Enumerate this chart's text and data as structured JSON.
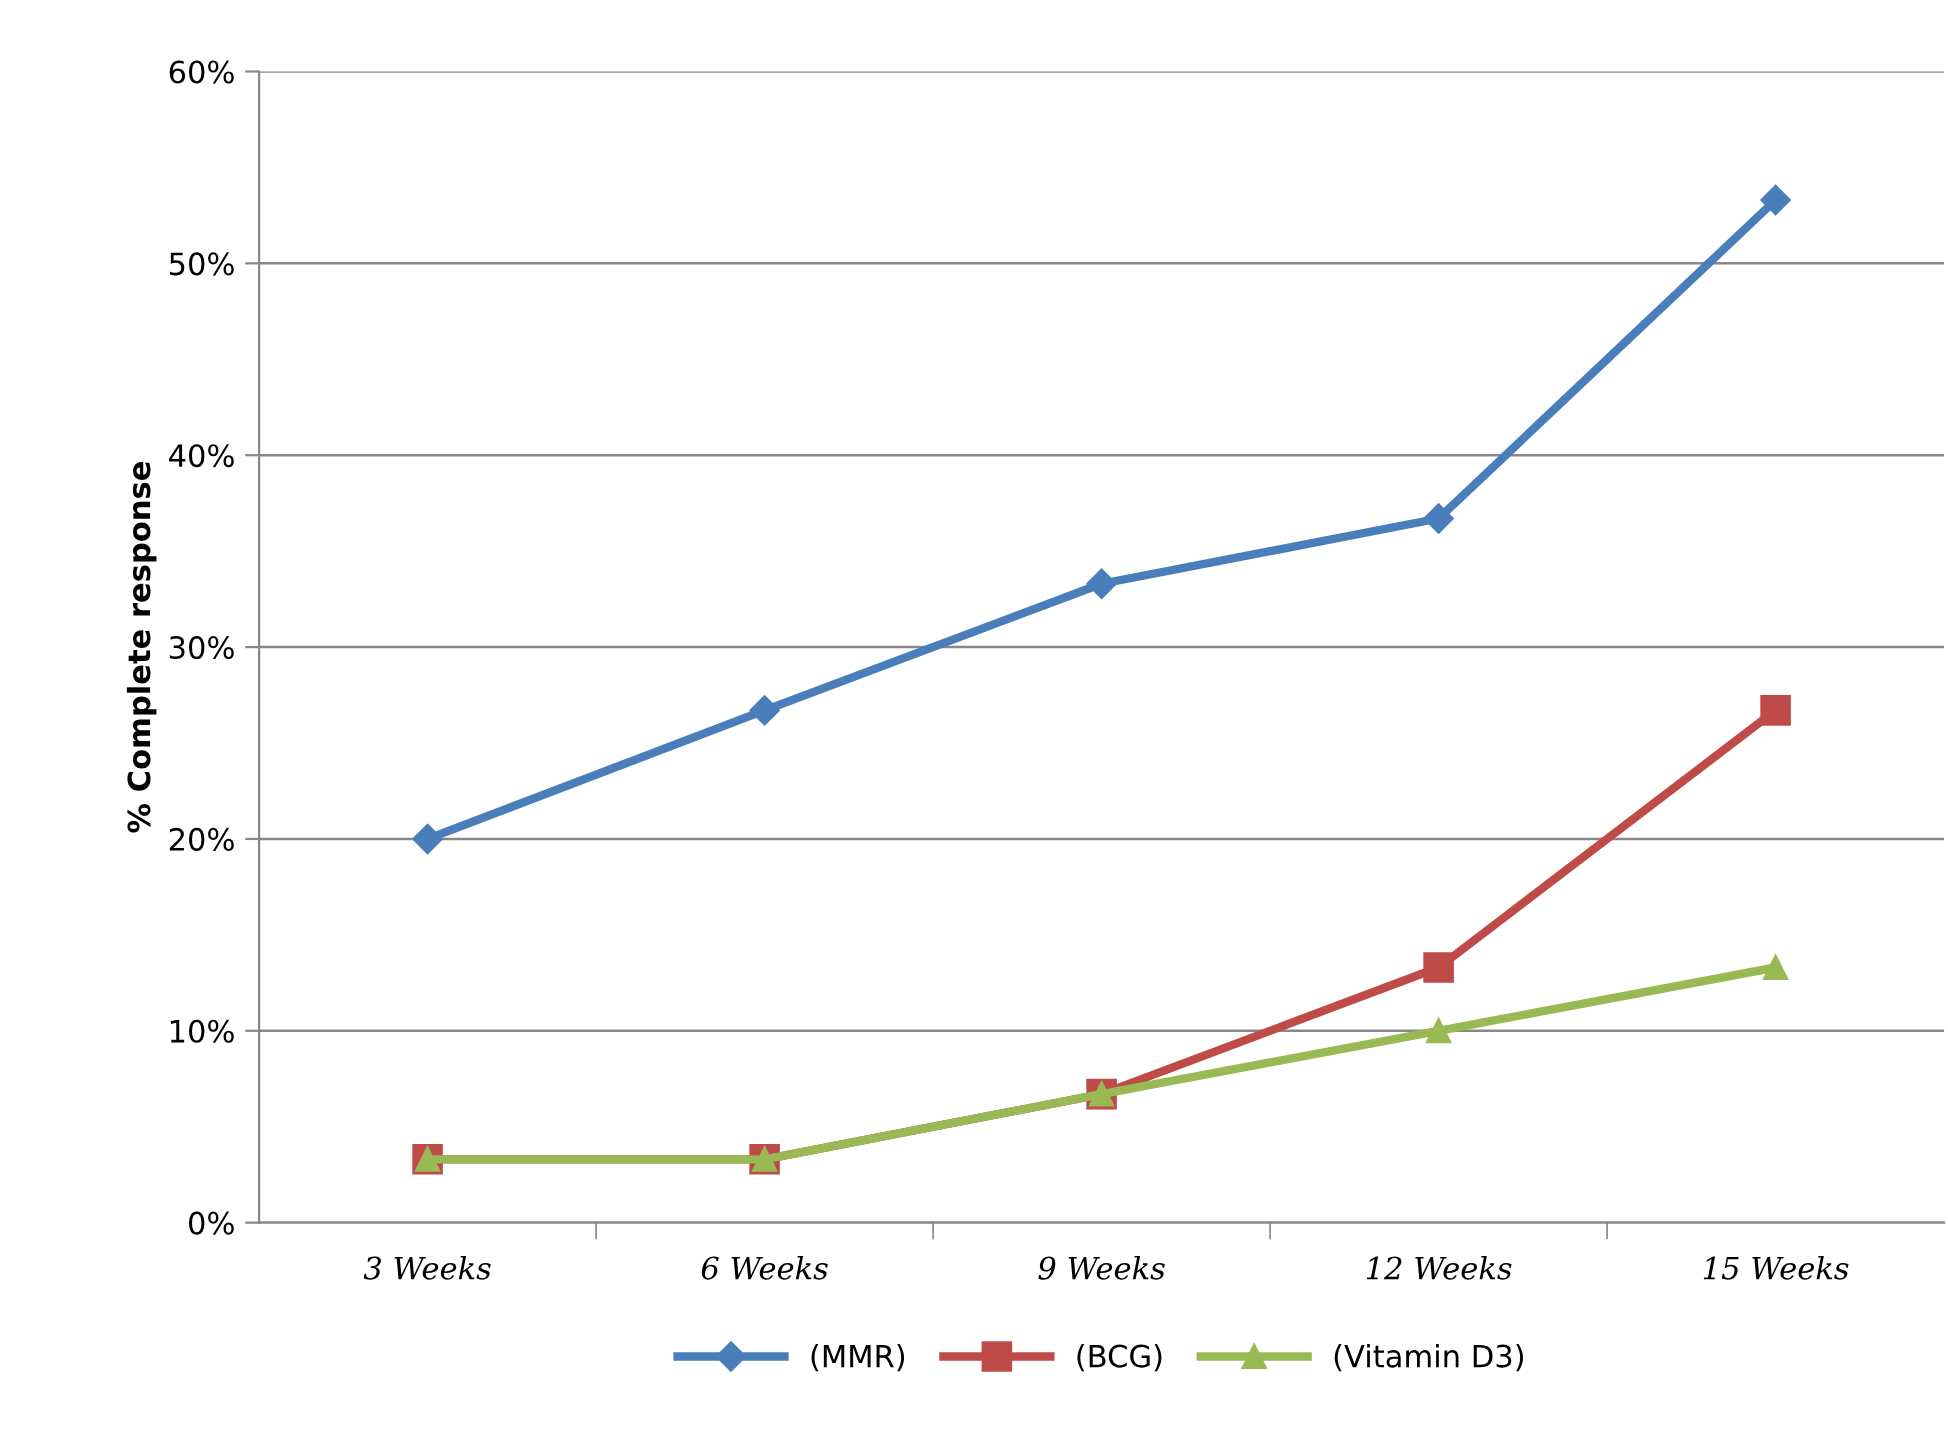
{
  "chart_data": {
    "type": "line",
    "ylabel": "% Complete response",
    "categories": [
      "3 Weeks",
      "6 Weeks",
      "9 Weeks",
      "12 Weeks",
      "15 Weeks"
    ],
    "series": [
      {
        "name": "(MMR)",
        "color": "#4a7ebb",
        "values": [
          20,
          26.7,
          33.3,
          36.7,
          53.3
        ],
        "marker": "diamond"
      },
      {
        "name": "(BCG)",
        "color": "#be4b48",
        "values": [
          3.3,
          3.3,
          6.7,
          13.3,
          26.7
        ],
        "marker": "square"
      },
      {
        "name": "(Vitamin D3)",
        "color": "#98b954",
        "values": [
          3.3,
          3.3,
          6.7,
          10,
          13.3
        ],
        "marker": "triangle"
      }
    ],
    "ylim": [
      0,
      60
    ],
    "yticks": [
      {
        "value": 0,
        "label": "0%"
      },
      {
        "value": 10,
        "label": "10%"
      },
      {
        "value": 20,
        "label": "20%"
      },
      {
        "value": 30,
        "label": "30%"
      },
      {
        "value": 40,
        "label": "40%"
      },
      {
        "value": 50,
        "label": "50%"
      },
      {
        "value": 60,
        "label": "60%"
      }
    ],
    "grid": "y",
    "legend": "bottom",
    "line_style": "solid"
  }
}
